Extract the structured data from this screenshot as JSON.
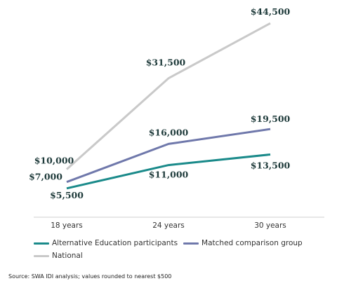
{
  "chart_data": {
    "type": "line",
    "categories": [
      "18 years",
      "24 years",
      "30 years"
    ],
    "ylim": [
      0,
      50000
    ],
    "grid": false,
    "legend_placement": "bottom",
    "series": [
      {
        "name": "Alternative Education participants",
        "color": "#1a8a8a",
        "values": [
          5500,
          11000,
          13500
        ],
        "labels": [
          "$5,500",
          "$11,000",
          "$13,500"
        ]
      },
      {
        "name": "Matched comparison group",
        "color": "#6f78ab",
        "values": [
          7000,
          16000,
          19500
        ],
        "labels": [
          "$7,000",
          "$16,000",
          "$19,500"
        ]
      },
      {
        "name": "National",
        "color": "#c9c9c9",
        "values": [
          10000,
          31500,
          44500
        ],
        "labels": [
          "$10,000",
          "$31,500",
          "$44,500"
        ]
      }
    ]
  },
  "source": "Source: SWA IDI analysis; values rounded to nearest $500"
}
